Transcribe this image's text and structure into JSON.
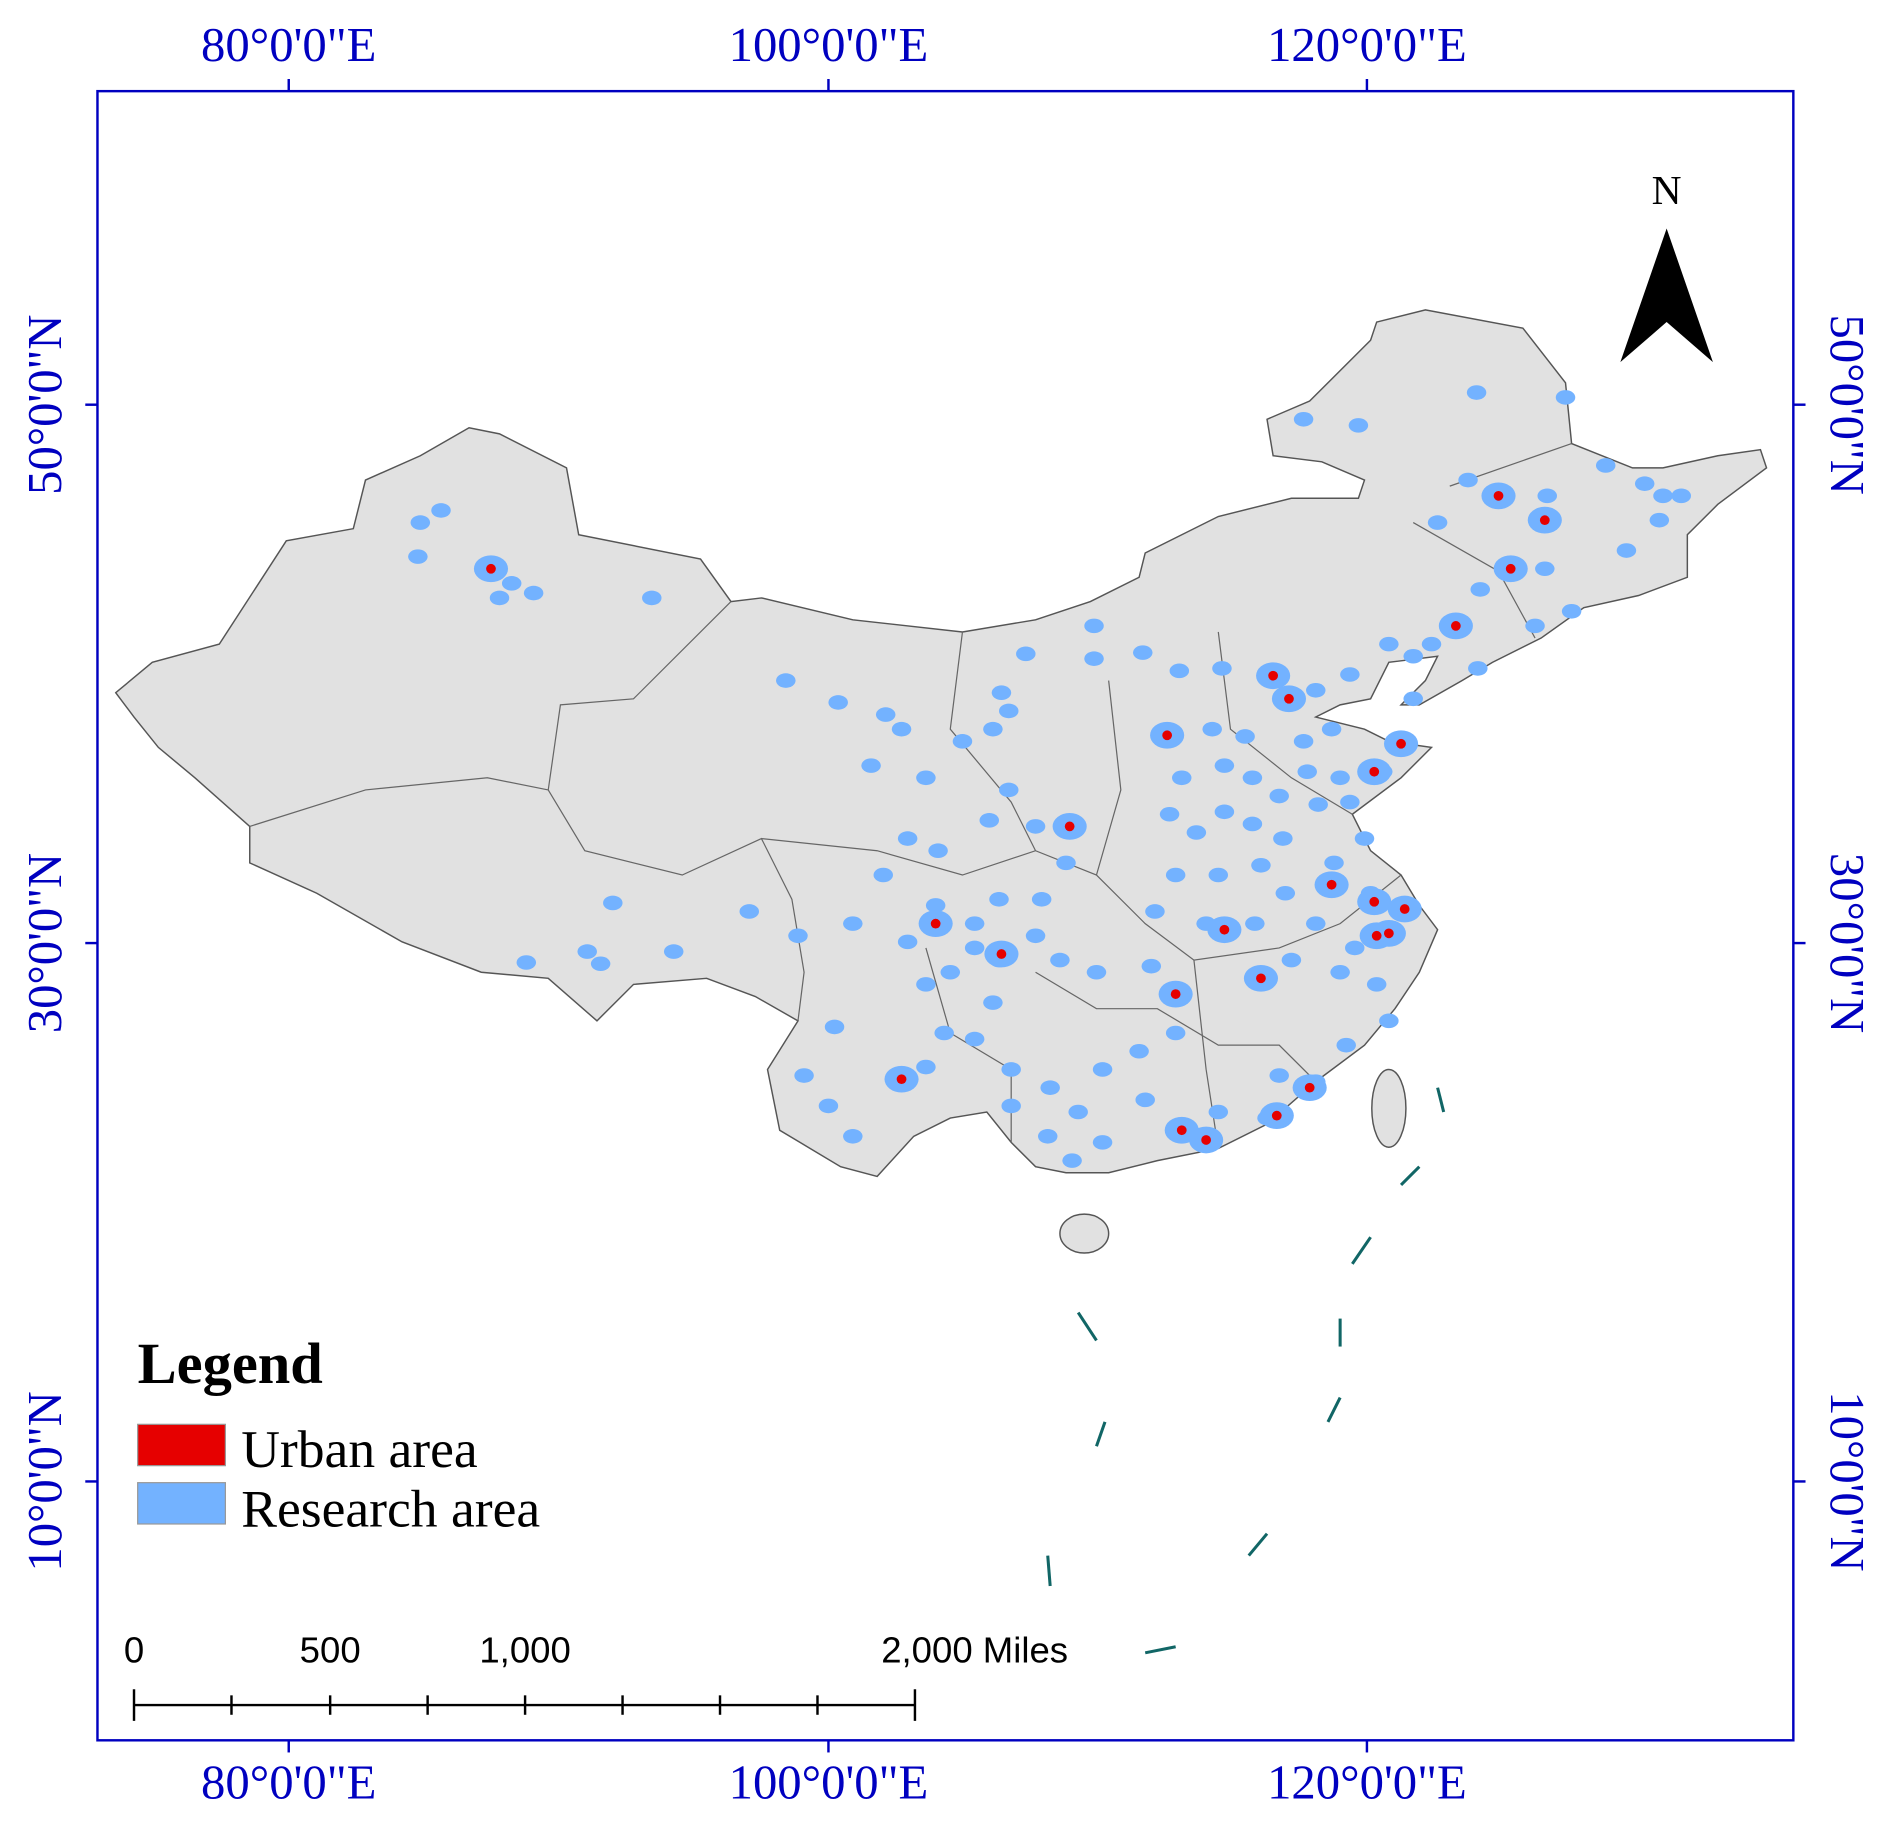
{
  "map": {
    "graticule": {
      "longitudes": [
        "80°0'0\"E",
        "100°0'0\"E",
        "120°0'0\"E"
      ],
      "latitudes": [
        "50°0'0\"N",
        "30°0'0\"N",
        "10°0'0\"N"
      ]
    },
    "north_label": "N",
    "legend": {
      "title": "Legend",
      "items": [
        {
          "label": "Urban area",
          "color": "#e60000"
        },
        {
          "label": "Research area",
          "color": "#73b2ff"
        }
      ]
    },
    "scale_bar": {
      "labels": [
        "0",
        "500",
        "1,000",
        "2,000 Miles"
      ]
    }
  }
}
